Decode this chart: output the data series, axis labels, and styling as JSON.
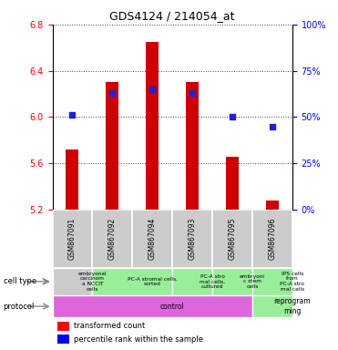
{
  "title": "GDS4124 / 214054_at",
  "samples": [
    "GSM867091",
    "GSM867092",
    "GSM867094",
    "GSM867093",
    "GSM867095",
    "GSM867096"
  ],
  "transformed_counts": [
    5.72,
    6.3,
    6.65,
    6.3,
    5.66,
    5.28
  ],
  "percentile_ranks": [
    51,
    63,
    65,
    63,
    50,
    45
  ],
  "y_min": 5.2,
  "y_max": 6.8,
  "y_ticks": [
    5.2,
    5.6,
    6.0,
    6.4,
    6.8
  ],
  "y2_ticks": [
    0,
    25,
    50,
    75,
    100
  ],
  "bar_color": "#cc0000",
  "dot_color": "#2222cc",
  "bar_width": 0.32,
  "sample_bg_color": "#cccccc",
  "cell_ranges": [
    [
      0,
      1
    ],
    [
      1,
      3
    ],
    [
      3,
      4
    ],
    [
      4,
      5
    ],
    [
      5,
      6
    ]
  ],
  "cell_labels": [
    "embryonal\ncarcinom\na NCCIT\ncells",
    "PC-A stromal cells,\nsorted",
    "PC-A stro\nmal cells,\ncultured",
    "embryoni\nc stem\ncells",
    "IPS cells\nfrom\nPC-A stro\nmal cells"
  ],
  "cell_color": "#99ee99",
  "cell_color_first": "#cccccc",
  "proto_ranges": [
    [
      0,
      5
    ],
    [
      5,
      6
    ]
  ],
  "proto_labels": [
    "control",
    "reprogram\nming"
  ],
  "proto_colors": [
    "#dd66dd",
    "#99ee99"
  ],
  "grid_color": "#444444",
  "legend_labels": [
    "transformed count",
    "percentile rank within the sample"
  ]
}
